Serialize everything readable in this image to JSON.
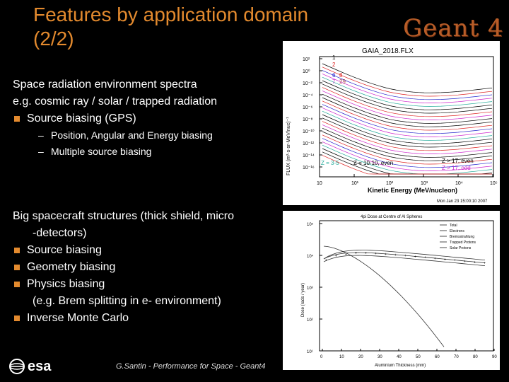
{
  "header": {
    "title_line1": "Features by application domain",
    "title_line2": "(2/2)",
    "logo_text": "Geant 4"
  },
  "block1": {
    "line1": "Space radiation environment spectra",
    "line2": "e.g. cosmic ray / solar / trapped radiation",
    "bullet1": "Source biasing (GPS)",
    "sub1": "Position, Angular and Energy biasing",
    "sub2": "Multiple source biasing"
  },
  "block2": {
    "line1": "Big spacecraft structures (thick shield, micro",
    "line1b": "-detectors)",
    "bullet1": "Source biasing",
    "bullet2": "Geometry biasing",
    "bullet3": "Physics biasing",
    "bullet3b": "(e.g. Brem splitting in e- environment)",
    "bullet4": "Inverse Monte Carlo"
  },
  "plot1": {
    "title": "GAIA_2018.FLX",
    "ylabel": "FLUX (m²-s-sr-MeV/nuc)⁻¹",
    "xlabel": "Kinetic Energy (MeV/nucleon)",
    "y_ticks": [
      "10²",
      "10⁰",
      "10⁻²",
      "10⁻⁴",
      "10⁻⁶",
      "10⁻⁸",
      "10⁻¹⁰",
      "10⁻¹²",
      "10⁻¹⁴",
      "10⁻¹⁶"
    ],
    "x_ticks": [
      "10",
      "10¹",
      "10²",
      "10³",
      "10⁴",
      "10⁵"
    ],
    "legend_left": [
      "1",
      "2",
      "6",
      "7"
    ],
    "legend_right": [
      "8",
      "29"
    ],
    "bottom_labels": [
      "Z = 3-5",
      "Z = 10-10, even",
      "Z > 17, even",
      "Z > 17, odd"
    ],
    "date": "Mon Jan 23 15:00:10 2007"
  },
  "plot2": {
    "title": "4pi Dose at Centre of Al Spheres",
    "ylabel": "Dose (rads / year)",
    "xlabel": "Aluminium Thickness (mm)",
    "legend": [
      "Total",
      "Electrons",
      "Bremsstrahlung",
      "Trapped Protons",
      "Solar Protons"
    ],
    "y_ticks": [
      "10⁵",
      "10⁴",
      "10³",
      "10²",
      "10¹"
    ],
    "x_ticks": [
      "0",
      "10",
      "20",
      "30",
      "40",
      "50",
      "60",
      "70",
      "80",
      "90"
    ]
  },
  "footer": {
    "text": "G.Santin  -  Performance for Space  -  Geant4"
  },
  "esa": {
    "text": "esa"
  }
}
